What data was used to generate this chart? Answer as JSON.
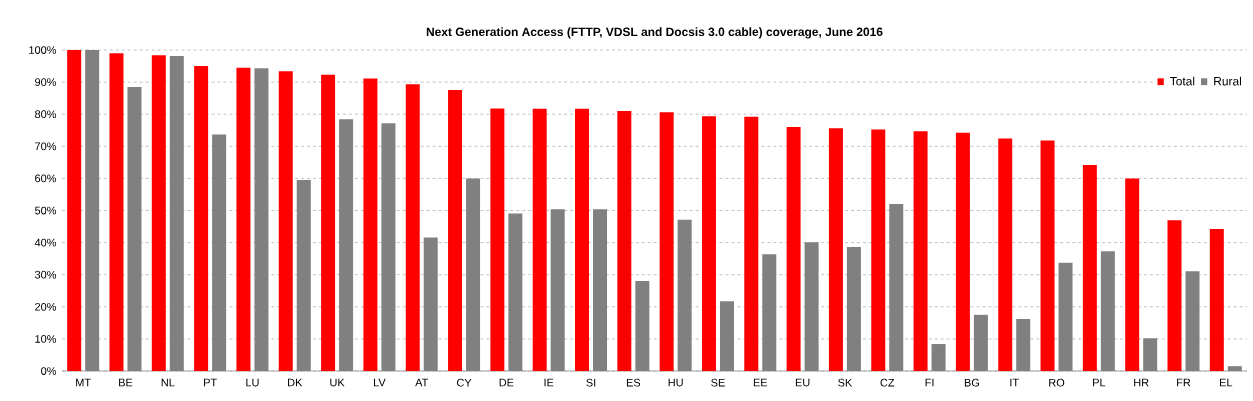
{
  "chart_data": {
    "type": "bar",
    "title": "Next Generation Access (FTTP, VDSL and Docsis 3.0 cable) coverage, June 2016",
    "categories": [
      "MT",
      "BE",
      "NL",
      "PT",
      "LU",
      "DK",
      "UK",
      "LV",
      "AT",
      "CY",
      "DE",
      "IE",
      "SI",
      "ES",
      "HU",
      "SE",
      "EE",
      "EU",
      "SK",
      "CZ",
      "FI",
      "BG",
      "IT",
      "RO",
      "PL",
      "HR",
      "FR",
      "EL"
    ],
    "series": [
      {
        "name": "Total",
        "color": "#ff0000",
        "values": [
          100,
          99,
          98.4,
          95,
          94.5,
          93.4,
          92.3,
          91.1,
          89.3,
          87.5,
          81.8,
          81.7,
          81.7,
          81,
          80.6,
          79.4,
          79.2,
          76,
          75.6,
          75.2,
          74.7,
          74.2,
          72.4,
          71.8,
          64.2,
          60,
          47,
          44.2
        ]
      },
      {
        "name": "Rural",
        "color": "#808080",
        "values": [
          100,
          88.5,
          98.1,
          73.7,
          94.3,
          59.5,
          78.4,
          77.2,
          41.6,
          60,
          49.1,
          50.4,
          50.4,
          28,
          47.1,
          21.7,
          36.4,
          40.1,
          38.6,
          52,
          8.4,
          17.5,
          16.2,
          33.7,
          37.3,
          10.2,
          31.1,
          1.5
        ]
      }
    ],
    "ylim": [
      0,
      100
    ],
    "yticks": [
      {
        "value": 0,
        "label": "0%"
      },
      {
        "value": 10,
        "label": "10%"
      },
      {
        "value": 20,
        "label": "20%"
      },
      {
        "value": 30,
        "label": "30%"
      },
      {
        "value": 40,
        "label": "40%"
      },
      {
        "value": 50,
        "label": "50%"
      },
      {
        "value": 60,
        "label": "60%"
      },
      {
        "value": 70,
        "label": "70%"
      },
      {
        "value": 80,
        "label": "80%"
      },
      {
        "value": 90,
        "label": "90%"
      },
      {
        "value": 100,
        "label": "100%"
      }
    ],
    "grid": "y",
    "legend": "top right"
  }
}
